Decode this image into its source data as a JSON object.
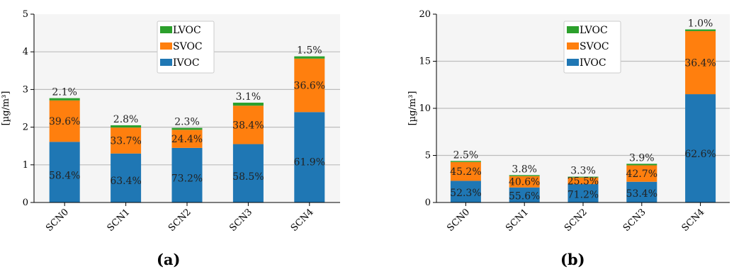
{
  "chart_data": [
    {
      "type": "bar",
      "stacked": true,
      "caption": "(a)",
      "ylabel": "[µg/m³]",
      "ylim": [
        0,
        5
      ],
      "yticks": [
        0,
        1,
        2,
        3,
        4,
        5
      ],
      "grid": "horizontal",
      "legend_placement": "top-center",
      "categories": [
        "SCN0",
        "SCN1",
        "SCN2",
        "SCN3",
        "SCN4"
      ],
      "series": [
        {
          "name": "IVOC",
          "color": "#1f77b4",
          "values": [
            1.61,
            1.3,
            1.45,
            1.55,
            2.4
          ],
          "labels": [
            "58.4%",
            "63.4%",
            "73.2%",
            "58.5%",
            "61.9%"
          ]
        },
        {
          "name": "SVOC",
          "color": "#ff7f0e",
          "values": [
            1.1,
            0.69,
            0.48,
            1.02,
            1.42
          ],
          "labels": [
            "39.6%",
            "33.7%",
            "24.4%",
            "38.4%",
            "36.6%"
          ]
        },
        {
          "name": "LVOC",
          "color": "#2ca02c",
          "values": [
            0.06,
            0.06,
            0.05,
            0.08,
            0.06
          ],
          "labels": [
            "2.1%",
            "2.8%",
            "2.3%",
            "3.1%",
            "1.5%"
          ]
        }
      ]
    },
    {
      "type": "bar",
      "stacked": true,
      "caption": "(b)",
      "ylabel": "[µg/m³]",
      "ylim": [
        0,
        20
      ],
      "yticks": [
        0,
        5,
        10,
        15,
        20
      ],
      "grid": "horizontal",
      "legend_placement": "top-center",
      "categories": [
        "SCN0",
        "SCN1",
        "SCN2",
        "SCN3",
        "SCN4"
      ],
      "series": [
        {
          "name": "IVOC",
          "color": "#1f77b4",
          "values": [
            2.3,
            1.6,
            1.95,
            2.2,
            11.5
          ],
          "labels": [
            "52.3%",
            "55.6%",
            "71.2%",
            "53.4%",
            "62.6%"
          ]
        },
        {
          "name": "SVOC",
          "color": "#ff7f0e",
          "values": [
            2.0,
            1.2,
            0.7,
            1.75,
            6.7
          ],
          "labels": [
            "45.2%",
            "40.6%",
            "25.5%",
            "42.7%",
            "36.4%"
          ]
        },
        {
          "name": "LVOC",
          "color": "#2ca02c",
          "values": [
            0.11,
            0.11,
            0.09,
            0.16,
            0.18
          ],
          "labels": [
            "2.5%",
            "3.8%",
            "3.3%",
            "3.9%",
            "1.0%"
          ]
        }
      ]
    }
  ]
}
